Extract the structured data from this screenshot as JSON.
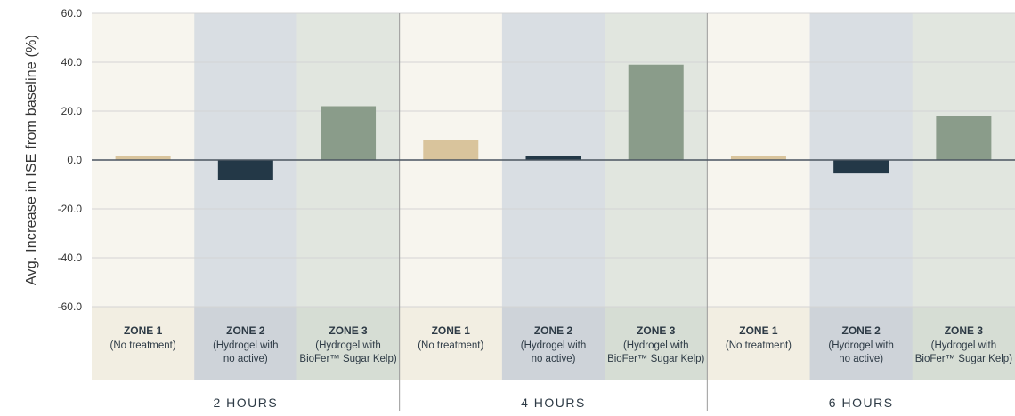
{
  "chart_data": {
    "type": "bar",
    "ylabel": "Avg. Increase in ISE from baseline (%)",
    "ylim": [
      -60,
      60
    ],
    "y_ticks": [
      "60.0",
      "40.0",
      "20.0",
      "0.0",
      "-20.0",
      "-40.0",
      "-60.0"
    ],
    "y_tick_values": [
      60,
      40,
      20,
      0,
      -20,
      -40,
      -60
    ],
    "grid": true,
    "zones": [
      {
        "name": "ZONE 1",
        "desc_lines": [
          "(No treatment)"
        ],
        "bar_color": "#d9c49c",
        "band_color": "#f7f5ee",
        "label_band_color": "#f2eee2"
      },
      {
        "name": "ZONE 2",
        "desc_lines": [
          "(Hydrogel with",
          "no active)"
        ],
        "bar_color": "#233847",
        "band_color": "#d9dee3",
        "label_band_color": "#ced3d9"
      },
      {
        "name": "ZONE 3",
        "desc_lines": [
          "(Hydrogel with",
          "BioFer™ Sugar Kelp)"
        ],
        "bar_color": "#8a9c8a",
        "band_color": "#e1e6df",
        "label_band_color": "#d6ddd4"
      }
    ],
    "groups": [
      {
        "label": "2 HOURS",
        "values": [
          1.5,
          -8,
          22
        ]
      },
      {
        "label": "4 HOURS",
        "values": [
          8,
          1.5,
          39
        ]
      },
      {
        "label": "6 HOURS",
        "values": [
          1.5,
          -5.5,
          18
        ]
      }
    ]
  }
}
